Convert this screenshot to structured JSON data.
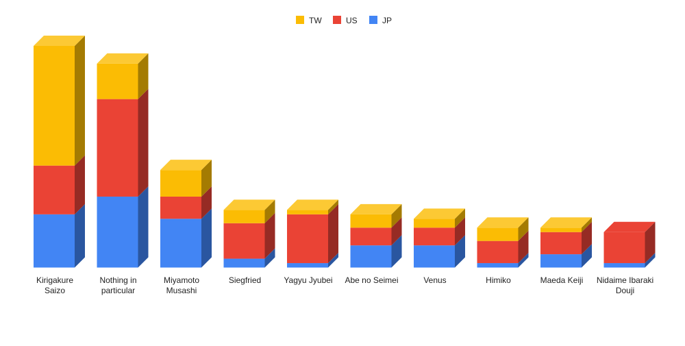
{
  "chart_data": {
    "type": "bar",
    "stacked": true,
    "three_d": true,
    "title": "",
    "xlabel": "",
    "ylabel": "",
    "legend_position": "top",
    "grid": false,
    "categories": [
      [
        "Kirigakure",
        "Saizo"
      ],
      [
        "Nothing in",
        "particular"
      ],
      [
        "Miyamoto",
        "Musashi"
      ],
      [
        "Siegfried"
      ],
      [
        "Yagyu Jyubei"
      ],
      [
        "Abe no Seimei"
      ],
      [
        "Venus"
      ],
      [
        "Himiko"
      ],
      [
        "Maeda Keiji"
      ],
      [
        "Nidaime Ibaraki",
        "Douji"
      ]
    ],
    "series": [
      {
        "name": "JP",
        "color": "#4285f4",
        "side": "#2a56a0",
        "values": [
          12,
          16,
          11,
          2,
          1,
          5,
          5,
          1,
          3,
          1
        ]
      },
      {
        "name": "US",
        "color": "#ea4335",
        "side": "#962b24",
        "values": [
          11,
          22,
          5,
          8,
          11,
          4,
          4,
          5,
          5,
          7
        ]
      },
      {
        "name": "TW",
        "color": "#fbbc04",
        "side": "#a47b02",
        "top": "#fcc934",
        "values": [
          27,
          8,
          6,
          3,
          1,
          3,
          2,
          3,
          1,
          0
        ]
      }
    ],
    "legend_order": [
      "TW",
      "US",
      "JP"
    ]
  }
}
